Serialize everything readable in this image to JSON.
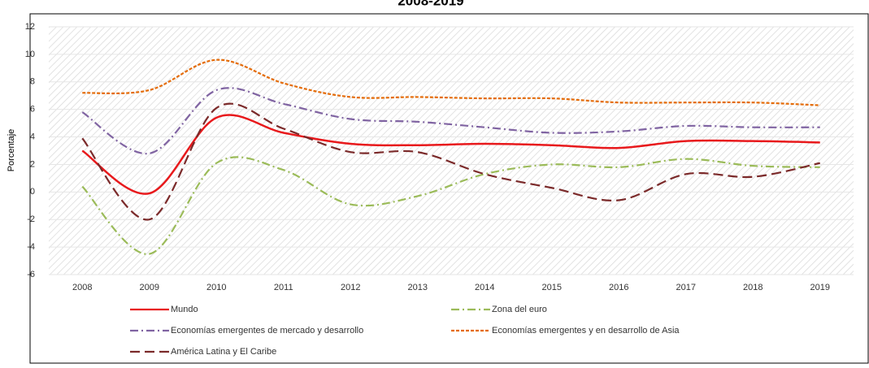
{
  "chart_data": {
    "type": "line",
    "title": "2008-2019",
    "y_label": "Porcentaje",
    "categories": [
      "2008",
      "2009",
      "2010",
      "2011",
      "2012",
      "2013",
      "2014",
      "2015",
      "2016",
      "2017",
      "2018",
      "2019"
    ],
    "ylim": [
      -6,
      12
    ],
    "yticks": [
      -6,
      -4,
      -2,
      0,
      2,
      4,
      6,
      8,
      10,
      12
    ],
    "grid": true,
    "series": [
      {
        "name": "Mundo",
        "color": "#e8191c",
        "dash": "none",
        "values": [
          3.0,
          -0.1,
          5.4,
          4.3,
          3.5,
          3.4,
          3.5,
          3.4,
          3.2,
          3.7,
          3.7,
          3.6
        ]
      },
      {
        "name": "Zona del euro",
        "color": "#9bbb59",
        "dash": "10 4 2 4",
        "values": [
          0.4,
          -4.5,
          2.1,
          1.6,
          -0.9,
          -0.3,
          1.3,
          2.0,
          1.8,
          2.4,
          1.9,
          1.8
        ]
      },
      {
        "name": "Economías emergentes de mercado y desarrollo",
        "color": "#8064a2",
        "dash": "10 4 2 4",
        "values": [
          5.8,
          2.8,
          7.4,
          6.4,
          5.3,
          5.1,
          4.7,
          4.3,
          4.4,
          4.8,
          4.7,
          4.7
        ]
      },
      {
        "name": "Economías emergentes y en desarrollo de Asia",
        "color": "#e46c0a",
        "dash": "4 2",
        "values": [
          7.2,
          7.4,
          9.6,
          7.9,
          6.9,
          6.9,
          6.8,
          6.8,
          6.5,
          6.5,
          6.5,
          6.3
        ]
      },
      {
        "name": "América Latina y El Caribe",
        "color": "#7b2a2a",
        "dash": "12 6",
        "values": [
          3.9,
          -2.0,
          6.1,
          4.6,
          2.9,
          2.9,
          1.3,
          0.3,
          -0.6,
          1.3,
          1.1,
          2.1
        ]
      }
    ]
  }
}
